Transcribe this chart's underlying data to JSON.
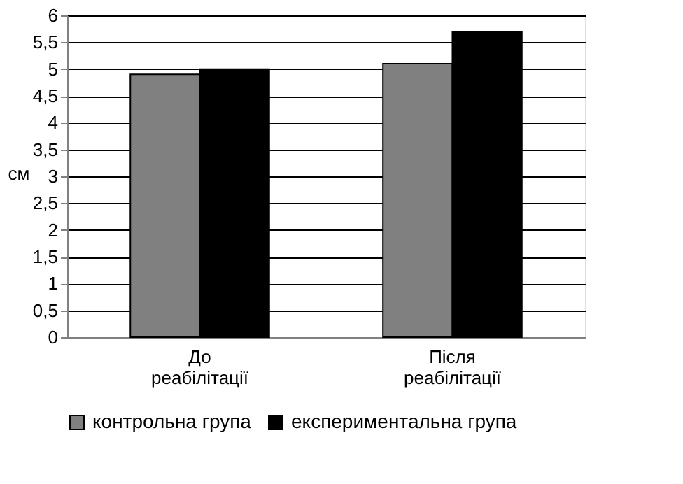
{
  "chart_data": {
    "type": "bar",
    "ylabel": "см",
    "categories": [
      "До реабілітації",
      "Після реабілітації"
    ],
    "series": [
      {
        "name": "контрольна група",
        "color": "#808080",
        "values": [
          4.9,
          5.1
        ]
      },
      {
        "name": "експериментальна група",
        "color": "#000000",
        "values": [
          5.0,
          5.7
        ]
      }
    ],
    "ylim": [
      0,
      6
    ],
    "yticks": [
      0,
      {
        "value": 0.5,
        "label": "0,5"
      },
      1,
      {
        "value": 1.5,
        "label": "1,5"
      },
      2,
      {
        "value": 2.5,
        "label": "2,5"
      },
      3,
      {
        "value": 3.5,
        "label": "3,5"
      },
      4,
      {
        "value": 4.5,
        "label": "4,5"
      },
      5,
      {
        "value": 5.5,
        "label": "5,5"
      },
      6
    ],
    "grid": "y",
    "legend": "bottom"
  }
}
